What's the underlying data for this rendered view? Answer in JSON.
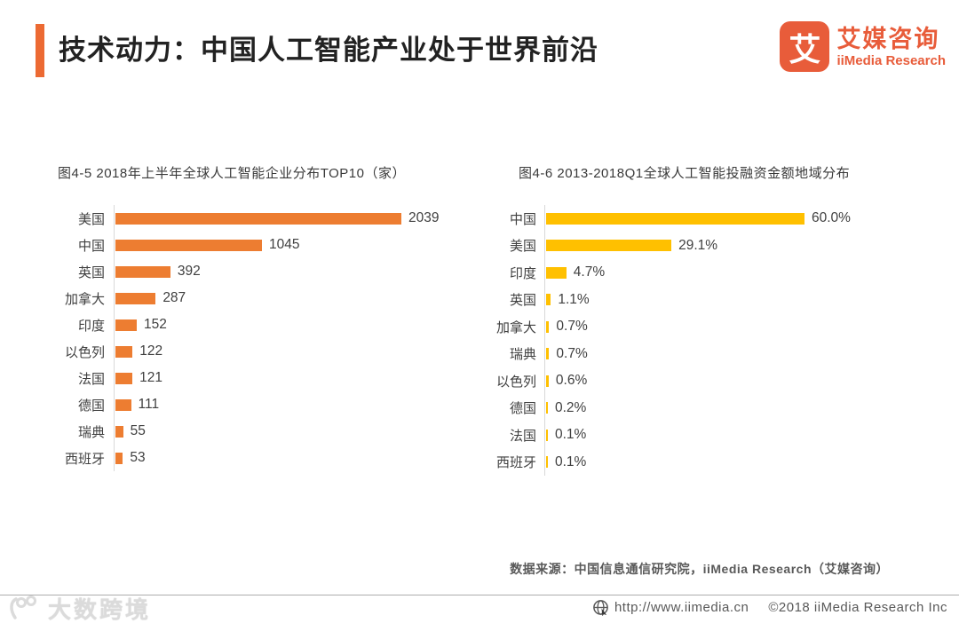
{
  "header": {
    "title": "技术动力：中国人工智能产业处于世界前沿",
    "accent_color": "#EC6A33",
    "logo": {
      "icon": "iimedia-logo-icon",
      "mark_glyph": "艾",
      "cn_name": "艾媒咨询",
      "en_name": "iiMedia Research",
      "brand_color": "#E85C3A"
    }
  },
  "chart_data": [
    {
      "type": "bar",
      "orientation": "horizontal",
      "title": "图4-5 2018年上半年全球人工智能企业分布TOP10（家）",
      "categories": [
        "美国",
        "中国",
        "英国",
        "加拿大",
        "印度",
        "以色列",
        "法国",
        "德国",
        "瑞典",
        "西班牙"
      ],
      "values": [
        2039,
        1045,
        392,
        287,
        152,
        122,
        121,
        111,
        55,
        53
      ],
      "value_labels": [
        "2039",
        "1045",
        "392",
        "287",
        "152",
        "122",
        "121",
        "111",
        "55",
        "53"
      ],
      "bar_color": "#ED7D31",
      "xlim": [
        0,
        2150
      ],
      "grid": false,
      "legend": false,
      "data_labels": "outside-end"
    },
    {
      "type": "bar",
      "orientation": "horizontal",
      "title": "图4-6 2013-2018Q1全球人工智能投融资金额地域分布",
      "categories": [
        "中国",
        "美国",
        "印度",
        "英国",
        "加拿大",
        "瑞典",
        "以色列",
        "德国",
        "法国",
        "西班牙"
      ],
      "values": [
        60.0,
        29.1,
        4.7,
        1.1,
        0.7,
        0.7,
        0.6,
        0.2,
        0.1,
        0.1
      ],
      "value_labels": [
        "60.0%",
        "29.1%",
        "4.7%",
        "1.1%",
        "0.7%",
        "0.7%",
        "0.6%",
        "0.2%",
        "0.1%",
        "0.1%"
      ],
      "unit": "%",
      "bar_color": "#FFC000",
      "xlim": [
        0,
        66
      ],
      "grid": false,
      "legend": false,
      "data_labels": "outside-end"
    }
  ],
  "source_note": "数据来源：中国信息通信研究院，iiMedia  Research（艾媒咨询）",
  "footer": {
    "globe_icon": "globe-icon",
    "url": "http://www.iimedia.cn",
    "copyright": "©2018  iiMedia Research Inc"
  },
  "watermark": {
    "icon": "dashu-kuajing-logo-icon",
    "text": "大数跨境"
  }
}
